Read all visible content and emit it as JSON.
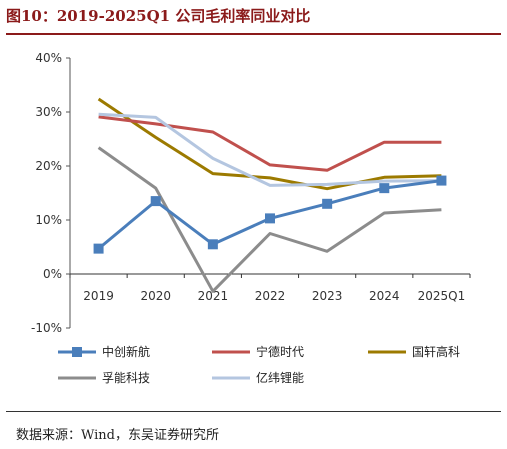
{
  "figure": {
    "title": "图10：2019-2025Q1 公司毛利率同业对比",
    "source": "数据来源：Wind，东吴证券研究所"
  },
  "colors": {
    "title": "#8B1A1A",
    "axis": "#555555",
    "zero_line": "#333333"
  },
  "chart_data": {
    "type": "line",
    "categories": [
      "2019",
      "2020",
      "2021",
      "2022",
      "2023",
      "2024",
      "2025Q1"
    ],
    "ylim": [
      -10,
      40
    ],
    "yticks": [
      -10,
      0,
      10,
      20,
      30,
      40
    ],
    "ytick_labels": [
      "-10%",
      "0%",
      "10%",
      "20%",
      "30%",
      "40%"
    ],
    "ylabel": "",
    "xlabel": "",
    "grid": false,
    "legend_position": "bottom",
    "series": [
      {
        "name": "中创新航",
        "color": "#4A7EBB",
        "marker": "square",
        "values": [
          4.7,
          13.5,
          5.5,
          10.3,
          13.0,
          15.9,
          17.3
        ]
      },
      {
        "name": "宁德时代",
        "color": "#C0504D",
        "marker": "none",
        "values": [
          29.1,
          27.8,
          26.3,
          20.2,
          19.2,
          24.4,
          24.4
        ]
      },
      {
        "name": "国轩高科",
        "color": "#9C7A00",
        "marker": "none",
        "values": [
          32.4,
          25.3,
          18.6,
          17.8,
          15.8,
          17.9,
          18.2
        ]
      },
      {
        "name": "孚能科技",
        "color": "#8C8C8C",
        "marker": "none",
        "values": [
          23.4,
          15.9,
          -3.2,
          7.5,
          4.2,
          11.3,
          11.9
        ]
      },
      {
        "name": "亿纬锂能",
        "color": "#B4C6E0",
        "marker": "none",
        "values": [
          29.6,
          29.0,
          21.4,
          16.4,
          16.6,
          17.2,
          17.3
        ]
      }
    ]
  }
}
